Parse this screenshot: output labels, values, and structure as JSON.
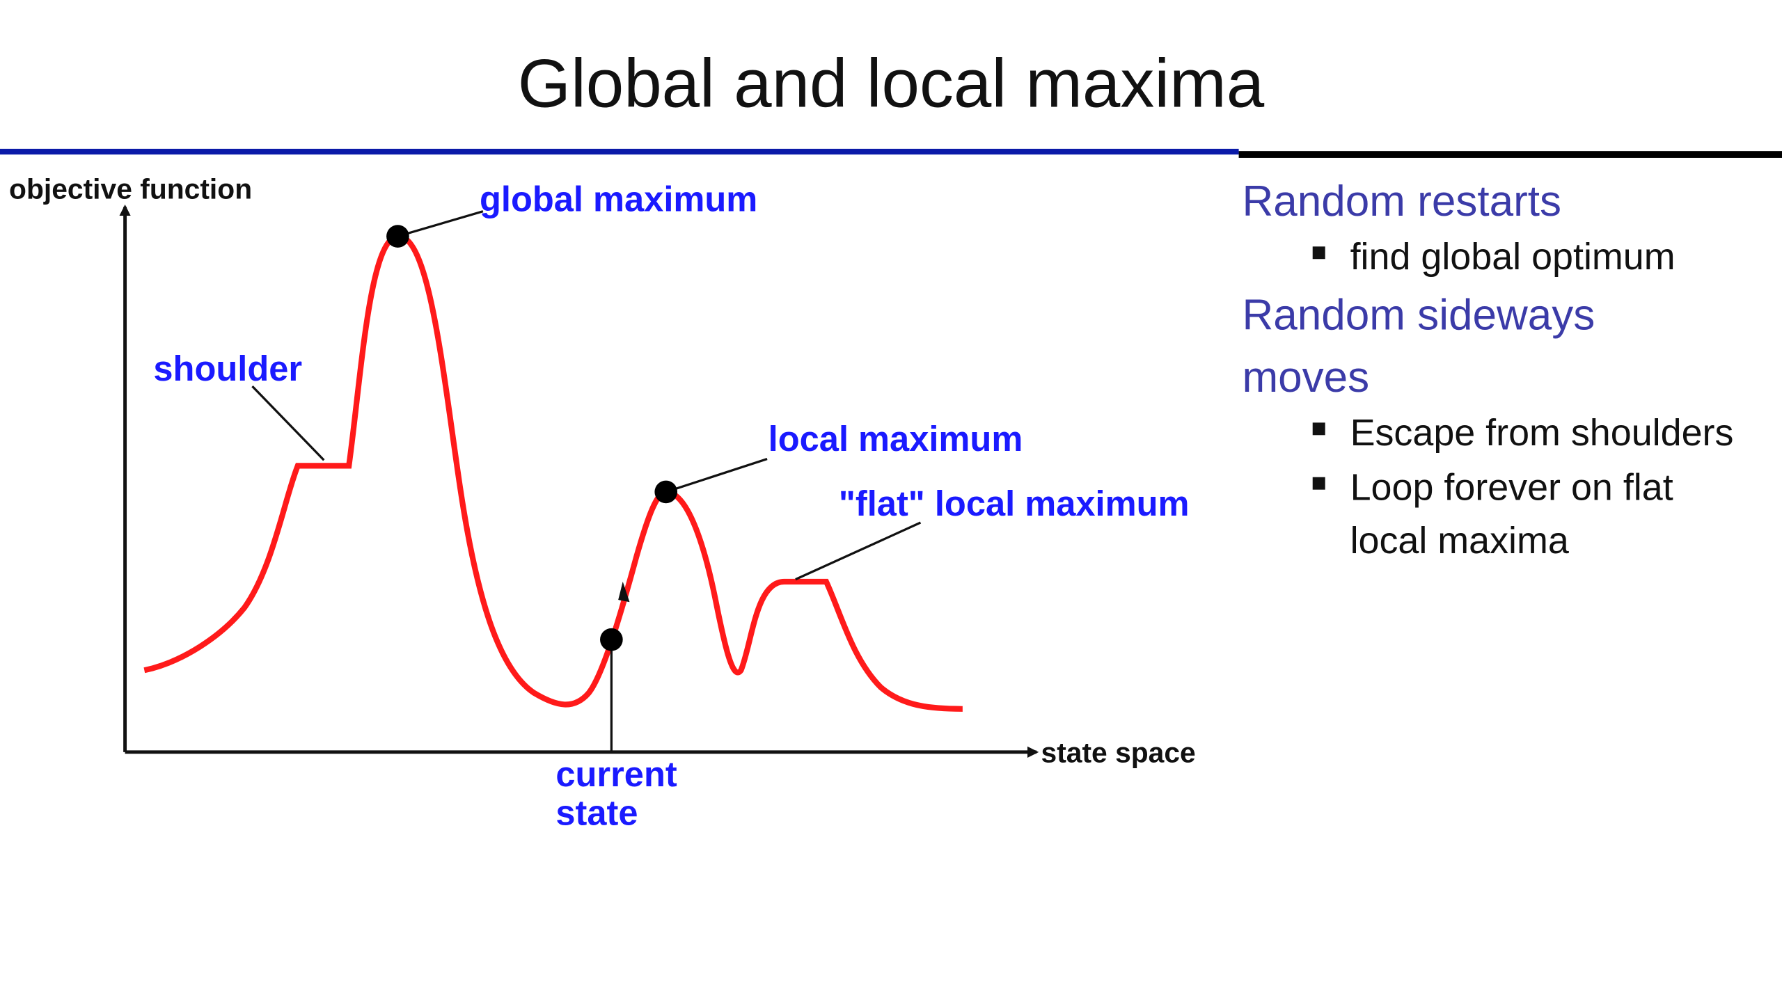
{
  "title": "Global and local maxima",
  "diagram": {
    "y_axis_label": "objective function",
    "x_axis_label": "state space",
    "global_maximum": "global maximum",
    "shoulder": "shoulder",
    "local_maximum": "local maximum",
    "flat_local_maximum": "\"flat\" local maximum",
    "current_state": [
      "current",
      "state"
    ]
  },
  "bullets": [
    {
      "heading": [
        "Random restarts"
      ],
      "items": [
        [
          "find global optimum"
        ]
      ]
    },
    {
      "heading": [
        "Random sideways",
        "moves"
      ],
      "items": [
        [
          "Escape from shoulders"
        ],
        [
          "Loop forever on flat",
          "local maxima"
        ]
      ]
    }
  ]
}
